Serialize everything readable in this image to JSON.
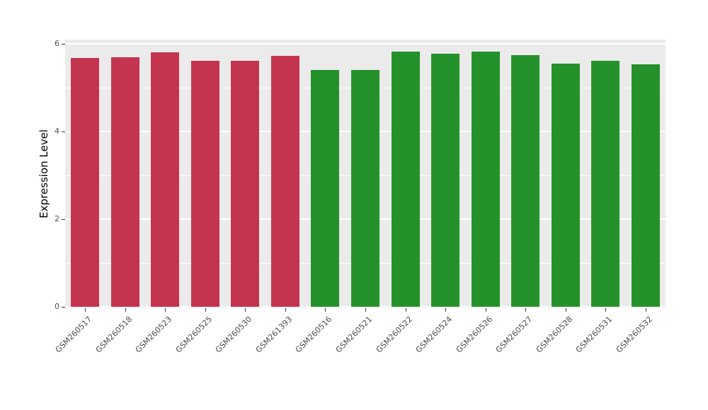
{
  "chart_data": {
    "type": "bar",
    "title": "",
    "xlabel": "",
    "ylabel": "Expression Level",
    "ylim": [
      0,
      6.1
    ],
    "yticks": [
      0,
      2,
      4,
      6
    ],
    "minor_gridlines": [
      1,
      3,
      5
    ],
    "grid": true,
    "legend": "none",
    "panel_background": "#EBEBEB",
    "gridline_color": "#FFFFFF",
    "group_colors": {
      "red": "#C4344F",
      "green": "#24912B"
    },
    "categories": [
      "GSM260517",
      "GSM260518",
      "GSM260523",
      "GSM260525",
      "GSM260530",
      "GSM261393",
      "GSM260516",
      "GSM260521",
      "GSM260522",
      "GSM260524",
      "GSM260526",
      "GSM260527",
      "GSM260528",
      "GSM260531",
      "GSM260532"
    ],
    "values": [
      5.67,
      5.69,
      5.8,
      5.62,
      5.62,
      5.73,
      5.4,
      5.4,
      5.82,
      5.77,
      5.82,
      5.75,
      5.55,
      5.61,
      5.53
    ],
    "bar_groups": [
      "red",
      "red",
      "red",
      "red",
      "red",
      "red",
      "green",
      "green",
      "green",
      "green",
      "green",
      "green",
      "green",
      "green",
      "green"
    ]
  }
}
